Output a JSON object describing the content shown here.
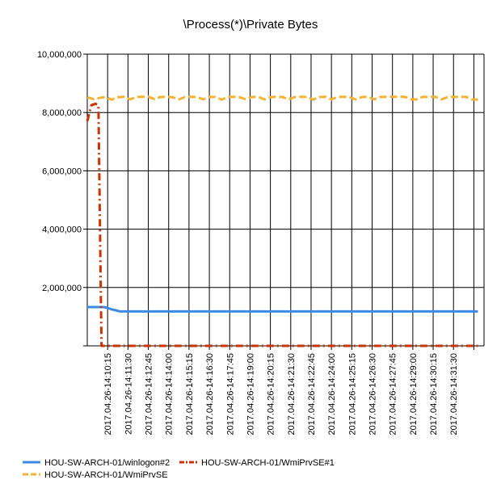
{
  "chart_data": {
    "type": "line",
    "title": "\\Process(*)\\Private Bytes",
    "xlabel": "",
    "ylabel": "",
    "ylim": [
      0,
      10000000
    ],
    "y_ticks": [
      0,
      2000000,
      4000000,
      6000000,
      8000000,
      10000000
    ],
    "y_tick_labels": [
      "",
      "2,000,000",
      "4,000,000",
      "6,000,000",
      "8,000,000",
      "10,000,000"
    ],
    "x_range": [
      0,
      19.5
    ],
    "x_ticks": [
      1,
      2,
      3,
      4,
      5,
      6,
      7,
      8,
      9,
      10,
      11,
      12,
      13,
      14,
      15,
      16,
      17,
      18,
      19
    ],
    "x_tick_labels": [
      "2017.04.26-14:10:15",
      "2017.04.26-14:11:30",
      "2017.04.26-14:12:45",
      "2017.04.26-14:14:00",
      "2017.04.26-14:15:15",
      "2017.04.26-14:16:30",
      "2017.04.26-14:17:45",
      "2017.04.26-14:19:00",
      "2017.04.26-14:20:15",
      "2017.04.26-14:21:30",
      "2017.04.26-14:22:45",
      "2017.04.26-14:24:00",
      "2017.04.26-14:25:15",
      "2017.04.26-14:26:30",
      "2017.04.26-14:27:45",
      "2017.04.26-14:29:00",
      "2017.04.26-14:30:15",
      "2017.04.26-14:31:30",
      ""
    ],
    "grid": true,
    "legend_position": "bottom",
    "series": [
      {
        "name": "HOU-SW-ARCH-01/winlogon#2",
        "color": "#3b8ae6",
        "style": "solid",
        "x": [
          0,
          0.4,
          0.8,
          1.0,
          1.2,
          1.4,
          1.6,
          19.2
        ],
        "y": [
          1330000,
          1330000,
          1330000,
          1300000,
          1250000,
          1220000,
          1180000,
          1180000
        ]
      },
      {
        "name": "HOU-SW-ARCH-01/WmiPrvSE#1",
        "color": "#cc3300",
        "style": "dashdot",
        "x": [
          0,
          0.2,
          0.4,
          0.55,
          0.7,
          1.0,
          19.2
        ],
        "y": [
          7700000,
          8250000,
          8300000,
          8250000,
          0,
          0,
          0
        ]
      },
      {
        "name": "HOU-SW-ARCH-01/WmiPrvSE",
        "color": "#f5b233",
        "style": "dashed",
        "x": [
          0,
          0.3,
          0.6,
          0.9,
          1.2,
          1.5,
          1.8,
          2.1,
          2.4,
          2.7,
          3.0,
          3.3,
          3.6,
          3.9,
          4.2,
          4.5,
          4.8,
          5.1,
          5.4,
          5.7,
          6.0,
          6.3,
          6.6,
          6.9,
          7.2,
          7.5,
          7.8,
          8.1,
          8.4,
          8.7,
          9.0,
          9.3,
          9.6,
          9.9,
          10.2,
          10.5,
          10.8,
          11.1,
          11.4,
          11.7,
          12.0,
          12.3,
          12.6,
          12.9,
          13.2,
          13.5,
          13.8,
          14.1,
          14.4,
          14.7,
          15.0,
          15.3,
          15.6,
          15.9,
          16.2,
          16.5,
          16.8,
          17.1,
          17.4,
          17.7,
          18.0,
          18.3,
          18.6,
          18.9,
          19.2
        ],
        "y": [
          8520000,
          8460000,
          8500000,
          8530000,
          8440000,
          8520000,
          8540000,
          8450000,
          8530000,
          8540000,
          8540000,
          8460000,
          8530000,
          8540000,
          8520000,
          8450000,
          8530000,
          8540000,
          8530000,
          8450000,
          8540000,
          8530000,
          8440000,
          8530000,
          8540000,
          8520000,
          8450000,
          8530000,
          8540000,
          8450000,
          8520000,
          8540000,
          8530000,
          8450000,
          8530000,
          8540000,
          8530000,
          8440000,
          8530000,
          8540000,
          8450000,
          8530000,
          8540000,
          8520000,
          8450000,
          8530000,
          8540000,
          8450000,
          8530000,
          8540000,
          8540000,
          8540000,
          8540000,
          8450000,
          8450000,
          8540000,
          8530000,
          8540000,
          8450000,
          8520000,
          8540000,
          8530000,
          8540000,
          8450000,
          8440000
        ]
      }
    ],
    "legend_order": [
      0,
      1,
      2
    ]
  }
}
